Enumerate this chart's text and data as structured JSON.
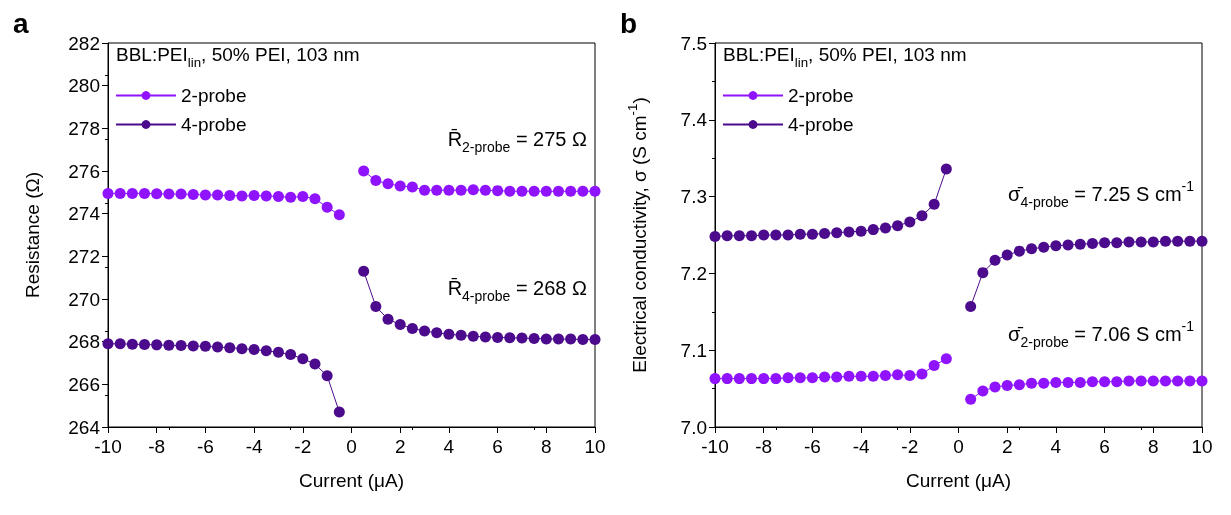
{
  "chart_data": [
    {
      "type": "line",
      "title": "a",
      "xlabel": "Current (μA)",
      "ylabel": "Resistance (Ω)",
      "legend_title": "BBL:PEI$_{lin}$, 50% PEI, 103 nm",
      "legend": "top left",
      "marker": "circle",
      "line_style": "solid",
      "grid": false,
      "x": [
        -10,
        -9.5,
        -9,
        -8.5,
        -8,
        -7.5,
        -7,
        -6.5,
        -6,
        -5.5,
        -5,
        -4.5,
        -4,
        -3.5,
        -3,
        -2.5,
        -2,
        -1.5,
        -1,
        -0.5,
        0,
        0.5,
        1,
        1.5,
        2,
        2.5,
        3,
        3.5,
        4,
        4.5,
        5,
        5.5,
        6,
        6.5,
        7,
        7.5,
        8,
        8.5,
        9,
        9.5,
        10
      ],
      "xlim": [
        -10,
        10
      ],
      "xticks": [
        -10,
        -8,
        -6,
        -4,
        -2,
        0,
        2,
        4,
        6,
        8,
        10
      ],
      "ylim": [
        264,
        282
      ],
      "yticks": [
        264,
        266,
        268,
        270,
        272,
        274,
        276,
        278,
        280,
        282
      ],
      "series": [
        {
          "name": "2-probe",
          "color": "#9013fe",
          "values": [
            274.95,
            274.95,
            274.95,
            274.95,
            274.93,
            274.92,
            274.92,
            274.9,
            274.88,
            274.87,
            274.85,
            274.83,
            274.85,
            274.83,
            274.8,
            274.77,
            274.8,
            274.7,
            274.3,
            273.95,
            null,
            276.0,
            275.55,
            275.4,
            275.3,
            275.25,
            275.1,
            275.1,
            275.1,
            275.1,
            275.12,
            275.1,
            275.08,
            275.05,
            275.05,
            275.05,
            275.05,
            275.05,
            275.05,
            275.05,
            275.05
          ]
        },
        {
          "name": "4-probe",
          "color": "#4b0b8c",
          "values": [
            267.9,
            267.9,
            267.88,
            267.87,
            267.85,
            267.83,
            267.82,
            267.8,
            267.78,
            267.75,
            267.72,
            267.67,
            267.63,
            267.57,
            267.5,
            267.4,
            267.2,
            266.95,
            266.4,
            264.7,
            null,
            271.3,
            269.65,
            269.05,
            268.8,
            268.62,
            268.5,
            268.42,
            268.35,
            268.3,
            268.25,
            268.22,
            268.2,
            268.18,
            268.17,
            268.15,
            268.13,
            268.12,
            268.12,
            268.1,
            268.1
          ]
        }
      ],
      "annotations": [
        "R̄$_{2-probe}$ = 275 Ω",
        "R̄$_{4-probe}$ = 268 Ω"
      ]
    },
    {
      "type": "line",
      "title": "b",
      "xlabel": "Current (μA)",
      "ylabel": "Electrical conductivity, σ (S cm$^{-1}$)",
      "legend_title": "BBL:PEI$_{lin}$, 50% PEI, 103 nm",
      "legend": "top left",
      "marker": "circle",
      "line_style": "solid",
      "grid": false,
      "x": [
        -10,
        -9.5,
        -9,
        -8.5,
        -8,
        -7.5,
        -7,
        -6.5,
        -6,
        -5.5,
        -5,
        -4.5,
        -4,
        -3.5,
        -3,
        -2.5,
        -2,
        -1.5,
        -1,
        -0.5,
        0,
        0.5,
        1,
        1.5,
        2,
        2.5,
        3,
        3.5,
        4,
        4.5,
        5,
        5.5,
        6,
        6.5,
        7,
        7.5,
        8,
        8.5,
        9,
        9.5,
        10
      ],
      "xlim": [
        -10,
        10
      ],
      "xticks": [
        -10,
        -8,
        -6,
        -4,
        -2,
        0,
        2,
        4,
        6,
        8,
        10
      ],
      "ylim": [
        7.0,
        7.5
      ],
      "yticks": [
        {
          "value": 7.0,
          "label": "7.0"
        },
        7.1,
        7.2,
        7.3,
        7.4,
        7.5
      ],
      "series": [
        {
          "name": "2-probe",
          "color": "#9013fe",
          "values": [
            7.063,
            7.063,
            7.063,
            7.063,
            7.063,
            7.063,
            7.064,
            7.064,
            7.064,
            7.065,
            7.065,
            7.066,
            7.066,
            7.066,
            7.067,
            7.068,
            7.067,
            7.069,
            7.08,
            7.089,
            null,
            7.036,
            7.047,
            7.052,
            7.054,
            7.055,
            7.057,
            7.057,
            7.058,
            7.058,
            7.058,
            7.059,
            7.059,
            7.059,
            7.06,
            7.06,
            7.06,
            7.06,
            7.06,
            7.06,
            7.06
          ]
        },
        {
          "name": "4-probe",
          "color": "#4b0b8c",
          "values": [
            7.248,
            7.249,
            7.249,
            7.249,
            7.25,
            7.25,
            7.25,
            7.251,
            7.251,
            7.252,
            7.253,
            7.254,
            7.255,
            7.257,
            7.259,
            7.262,
            7.267,
            7.275,
            7.29,
            7.336,
            null,
            7.157,
            7.201,
            7.217,
            7.224,
            7.229,
            7.232,
            7.234,
            7.236,
            7.237,
            7.238,
            7.239,
            7.24,
            7.24,
            7.241,
            7.241,
            7.241,
            7.242,
            7.242,
            7.242,
            7.242
          ]
        }
      ],
      "annotations": [
        "σ̄$_{2-probe}$ = 7.06 S cm$^{-1}$",
        "σ̄$_{4-probe}$ = 7.25 S cm$^{-1}$"
      ]
    }
  ]
}
